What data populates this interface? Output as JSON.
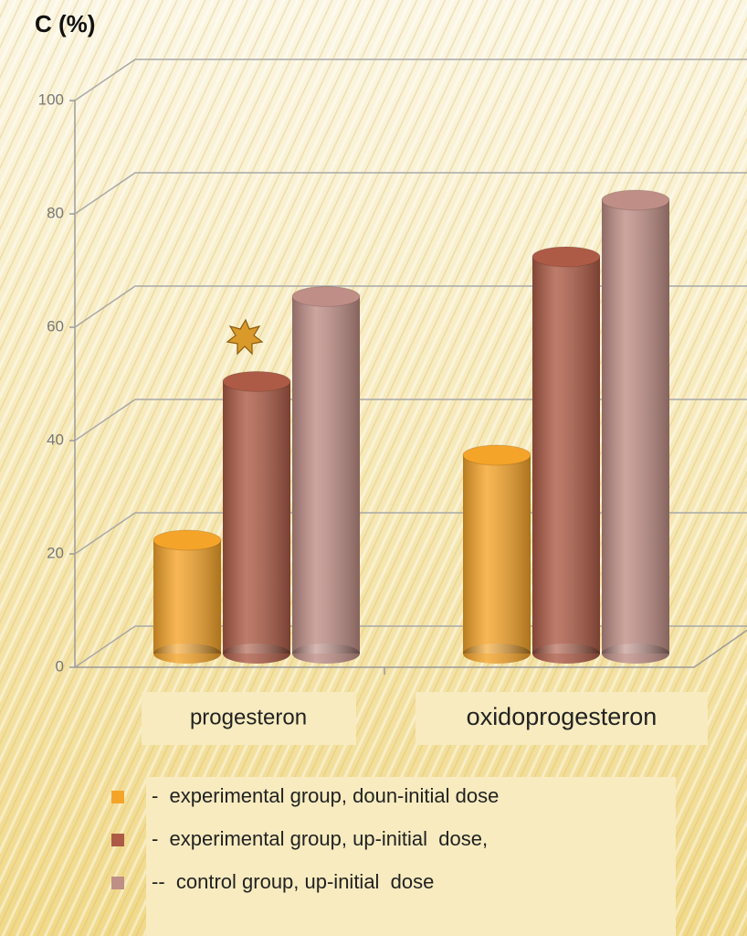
{
  "chart_data": {
    "type": "bar",
    "title": "C (%)",
    "categories": [
      "progesteron",
      "oxidoprogesteron"
    ],
    "series": [
      {
        "name": "-  experimental group, doun-initial dose",
        "color": "#f5a42a",
        "values": [
          20,
          35
        ]
      },
      {
        "name": "-  experimental group, up-initial  dose,",
        "color": "#ad5b46",
        "values": [
          48,
          70
        ]
      },
      {
        "name": "--  control group, up-initial  dose",
        "color": "#bf8e86",
        "values": [
          63,
          80
        ]
      }
    ],
    "ylim": [
      0,
      100
    ],
    "yticks": [
      0,
      20,
      40,
      60,
      80,
      100
    ],
    "grid": true
  }
}
